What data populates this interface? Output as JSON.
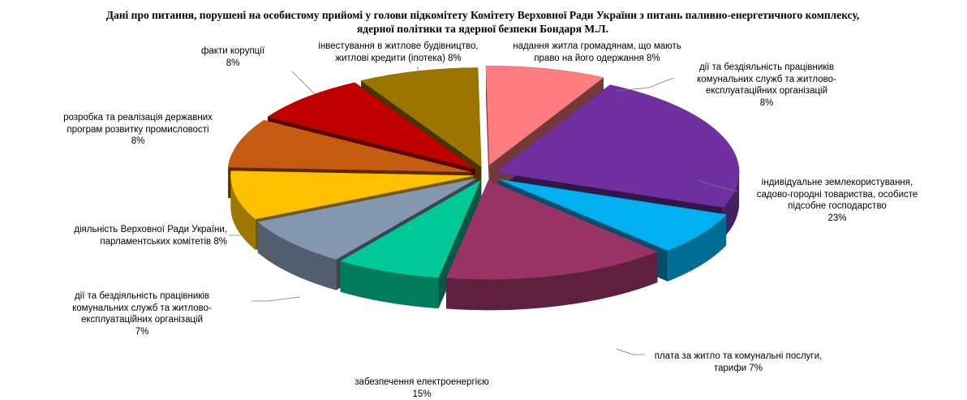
{
  "chart_data": {
    "type": "pie",
    "title": "Дані про питання, порушені на особистому прийомі у голови підкомітету Комітету Верховної Ради України з питань паливно-енергетичного комплексу, ядерної політики та ядерної безпеки Бондаря М.Л.",
    "series": [
      {
        "name": "індивідуальне  землекористування, садово-городні товариства, особисте підсобне господарство",
        "label": "індивідуальне  землекористування,\nсадово-городні товариства, особисте\nпідсобне господарство",
        "pct_label": "23%",
        "value": 23,
        "color": "#7030A0"
      },
      {
        "name": "плата за житло та комунальні послуги, тарифи",
        "label": "плата за житло та комунальні послуги,\nтарифи 7%",
        "pct_label": "",
        "value": 7,
        "color": "#00B0F0"
      },
      {
        "name": "забезпечення електроенергією",
        "label": "забезпечення електроенергією",
        "pct_label": "15%",
        "value": 15,
        "color": "#993366"
      },
      {
        "name": "дії та бездіяльність працівників комунальних служб та житлово-експлуатаційних організацій",
        "label": "дії  та бездіяльність  працівників\nкомунальних служб та житлово-\nексплуатаційних  організацій",
        "pct_label": "7%",
        "value": 7,
        "color": "#00C896"
      },
      {
        "name": "діяльність Верховної Ради України, парламентських комітетів",
        "label": "діяльність  Верховної Ради України,\nпарламентських  комітетів  8%",
        "pct_label": "",
        "value": 8,
        "color": "#8497B0"
      },
      {
        "name": "розробка та реалізація державних програм розвитку промисловості",
        "label": "розробка та реалізація державних\nпрограм розвитку промисловості",
        "pct_label": "8%",
        "value": 8,
        "color": "#FFC000"
      },
      {
        "name": "факти корупції",
        "label": "факти корупції",
        "pct_label": "8%",
        "value": 8,
        "color": "#C55A11"
      },
      {
        "name": "інвестування в житлове будівництво, житлові кредити (іпотека)",
        "label": "інвестування в житлове будівництво,\nжитлові  кредити  (іпотека)  8%",
        "pct_label": "",
        "value": 8,
        "color": "#C00000"
      },
      {
        "name": "надання житла громадянам, що мають право на його одержання",
        "label": "надання житла  громадянам, що мають\nправо на його одержання 8%",
        "pct_label": "",
        "value": 8,
        "color": "#9C7500"
      },
      {
        "name": "дії та бездіяльність працівників комунальних служб та житлово-експлуатаційних організацій",
        "label": "дії  та бездіяльність  працівників\nкомунальних служб та житлово-\nексплуатаційних  організацій",
        "pct_label": "8%",
        "value": 8,
        "color": "#FF7C80"
      }
    ],
    "legend": "none",
    "style": "3d-exploded-pie"
  }
}
